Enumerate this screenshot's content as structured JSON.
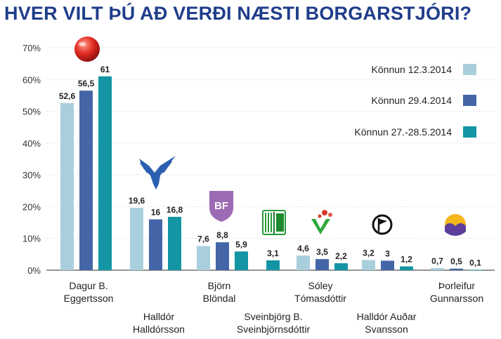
{
  "title": "HVER VILT ÞÚ AÐ VERÐI NÆSTI BORGARSTJÓRI?",
  "colors": {
    "title": "#1f3d8a",
    "series": [
      "#a9cfdc",
      "#4466a8",
      "#1495a3"
    ],
    "grid": "#d9d9d9",
    "axis": "#555555"
  },
  "chart_data": {
    "type": "bar",
    "title": "HVER VILT ÞÚ AÐ VERÐI NÆSTI BORGARSTJÓRI?",
    "xlabel": "",
    "ylabel": "",
    "ylim": [
      0,
      70
    ],
    "yticks": [
      "0%",
      "10%",
      "20%",
      "30%",
      "40%",
      "50%",
      "60%",
      "70%"
    ],
    "grid": true,
    "legend_position": "top-right",
    "categories": [
      "Dagur B. Eggertsson",
      "Halldór Halldórsson",
      "Björn Blöndal",
      "Sveinbjörg B. Sveinbjörnsdóttir",
      "Sóley Tómasdóttir",
      "Halldór Auðar Svansson",
      "Þorleifur Gunnarsson"
    ],
    "category_lines": [
      [
        "Dagur B.",
        "Eggertsson"
      ],
      [
        "Halldór",
        "Halldórsson"
      ],
      [
        "Björn",
        "Blöndal"
      ],
      [
        "Sveinbjörg B.",
        "Sveinbjörnsdóttir"
      ],
      [
        "Sóley",
        "Tómasdóttir"
      ],
      [
        "Halldór Auðar",
        "Svansson"
      ],
      [
        "Þorleifur",
        "Gunnarsson"
      ]
    ],
    "series": [
      {
        "name": "Könnun 12.3.2014",
        "values": [
          52.6,
          19.6,
          7.6,
          null,
          4.6,
          3.2,
          0.7
        ],
        "labels": [
          "52,6",
          "19,6",
          "7,6",
          "",
          "4,6",
          "3,2",
          "0,7"
        ]
      },
      {
        "name": "Könnun 29.4.2014",
        "values": [
          56.5,
          16,
          8.8,
          null,
          3.5,
          3,
          0.5
        ],
        "labels": [
          "56,5",
          "16",
          "8,8",
          "",
          "3,5",
          "3",
          "0,5"
        ]
      },
      {
        "name": "Könnun 27.-28.5.2014",
        "values": [
          61,
          16.8,
          5.9,
          3.1,
          2.2,
          1.2,
          0.1
        ],
        "labels": [
          "61",
          "16,8",
          "5,9",
          "3,1",
          "2,2",
          "1,2",
          "0,1"
        ]
      }
    ],
    "party_logos": [
      "red-rose-ball-icon",
      "falcon-icon",
      "bf-shield-icon",
      "book-icon",
      "green-v-icon",
      "pirate-flag-icon",
      "sunrise-icon"
    ],
    "party_logo_texts": [
      "",
      "",
      "BF",
      "",
      "",
      "",
      ""
    ]
  }
}
